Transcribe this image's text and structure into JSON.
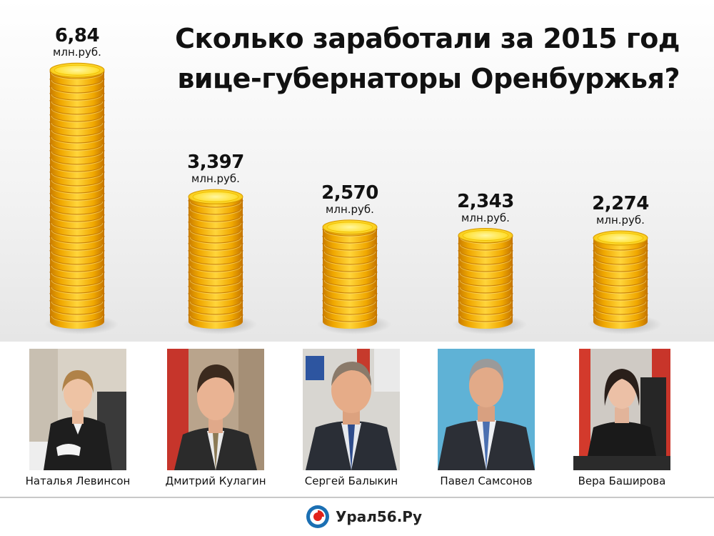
{
  "title_line1": "Сколько заработали за 2015 год",
  "title_line2": "вице-губернаторы Оренбуржья?",
  "chart_data": {
    "type": "bar",
    "categories": [
      "Наталья Левинсон",
      "Дмитрий Кулагин",
      "Сергей Балыкин",
      "Павел Самсонов",
      "Вера Баширова"
    ],
    "values": [
      6.84,
      3.397,
      2.57,
      2.343,
      2.274
    ],
    "value_labels": [
      "6,84",
      "3,397",
      "2,570",
      "2,343",
      "2,274"
    ],
    "unit": "млн.руб.",
    "ylim": [
      0,
      7
    ],
    "grid": false,
    "bar_style": "gold-coin-stacks"
  },
  "people": [
    {
      "name": "Наталья Левинсон"
    },
    {
      "name": "Дмитрий Кулагин"
    },
    {
      "name": "Сергей Балыкин"
    },
    {
      "name": "Павел Самсонов"
    },
    {
      "name": "Вера Баширова"
    }
  ],
  "logo": {
    "text": "Урал56.Ру"
  },
  "colors": {
    "coin_gold": "#f5b800",
    "coin_dark": "#d88a00",
    "coin_light": "#ffe25a",
    "logo_red": "#e2231a",
    "logo_blue": "#1b6fb3"
  }
}
